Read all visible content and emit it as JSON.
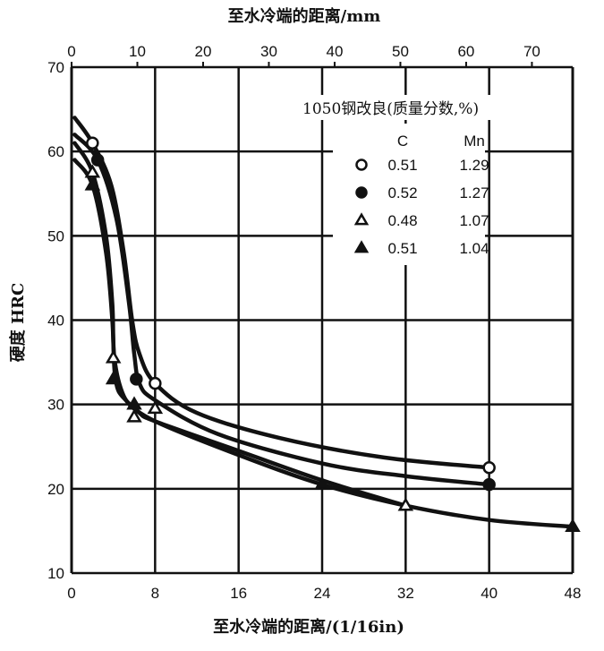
{
  "chart_data": {
    "type": "line",
    "xlabel": "至水冷端的距离/(1/16in)",
    "x2label": "至水冷端的距离/mm",
    "ylabel": "硬度  HRC",
    "xlim": [
      0,
      48
    ],
    "ylim": [
      10,
      70
    ],
    "x2lim": [
      0,
      76.2
    ],
    "xticks": [
      0,
      8,
      16,
      24,
      32,
      40,
      48
    ],
    "yticks": [
      10,
      20,
      30,
      40,
      50,
      60,
      70
    ],
    "x2ticks": [
      0,
      10,
      20,
      30,
      40,
      50,
      60,
      70
    ],
    "grid": true,
    "legend": {
      "title": "1050钢改良(质量分数,%)",
      "columns": [
        "C",
        "Mn"
      ],
      "placement": "top-right"
    },
    "series": [
      {
        "marker": "open-circle",
        "C": "0.51",
        "Mn": "1.29",
        "points": [
          [
            2,
            61
          ],
          [
            8,
            32.5
          ],
          [
            40,
            22.5
          ]
        ],
        "curve": [
          [
            0.3,
            64
          ],
          [
            2,
            61
          ],
          [
            3.8,
            56
          ],
          [
            5,
            48
          ],
          [
            5.8,
            40
          ],
          [
            6.5,
            36
          ],
          [
            8,
            32.5
          ],
          [
            12,
            29
          ],
          [
            20,
            26
          ],
          [
            30,
            23.7
          ],
          [
            40,
            22.5
          ]
        ]
      },
      {
        "marker": "filled-circle",
        "C": "0.52",
        "Mn": "1.27",
        "points": [
          [
            2.5,
            59
          ],
          [
            6.2,
            33
          ],
          [
            40,
            20.5
          ]
        ],
        "curve": [
          [
            0.3,
            62
          ],
          [
            2.5,
            59
          ],
          [
            4.3,
            52
          ],
          [
            5.5,
            42
          ],
          [
            6,
            36
          ],
          [
            6.5,
            32.5
          ],
          [
            8,
            30.5
          ],
          [
            14,
            26.5
          ],
          [
            24,
            23
          ],
          [
            32,
            21.5
          ],
          [
            40,
            20.5
          ]
        ]
      },
      {
        "marker": "open-triangle",
        "C": "0.48",
        "Mn": "1.07",
        "points": [
          [
            2,
            57.5
          ],
          [
            4,
            35.5
          ],
          [
            6,
            28.5
          ],
          [
            8,
            29.5
          ],
          [
            32,
            18
          ]
        ],
        "curve": [
          [
            0.3,
            61
          ],
          [
            2,
            57.5
          ],
          [
            3.3,
            50
          ],
          [
            3.9,
            42
          ],
          [
            4.1,
            35.5
          ],
          [
            5,
            31
          ],
          [
            6.5,
            29
          ],
          [
            8,
            28
          ],
          [
            16,
            24.5
          ],
          [
            24,
            21
          ],
          [
            32,
            18
          ]
        ]
      },
      {
        "marker": "filled-triangle",
        "C": "0.51",
        "Mn": "1.04",
        "points": [
          [
            2,
            56
          ],
          [
            4,
            33
          ],
          [
            6,
            30
          ],
          [
            24,
            20.5
          ],
          [
            48,
            15.5
          ]
        ],
        "curve": [
          [
            0.3,
            59
          ],
          [
            2,
            56
          ],
          [
            3.3,
            48
          ],
          [
            3.9,
            40
          ],
          [
            4.2,
            33
          ],
          [
            5.2,
            30.5
          ],
          [
            8,
            28
          ],
          [
            16,
            24
          ],
          [
            24,
            20.5
          ],
          [
            32,
            18
          ],
          [
            40,
            16.3
          ],
          [
            48,
            15.5
          ]
        ]
      }
    ]
  }
}
